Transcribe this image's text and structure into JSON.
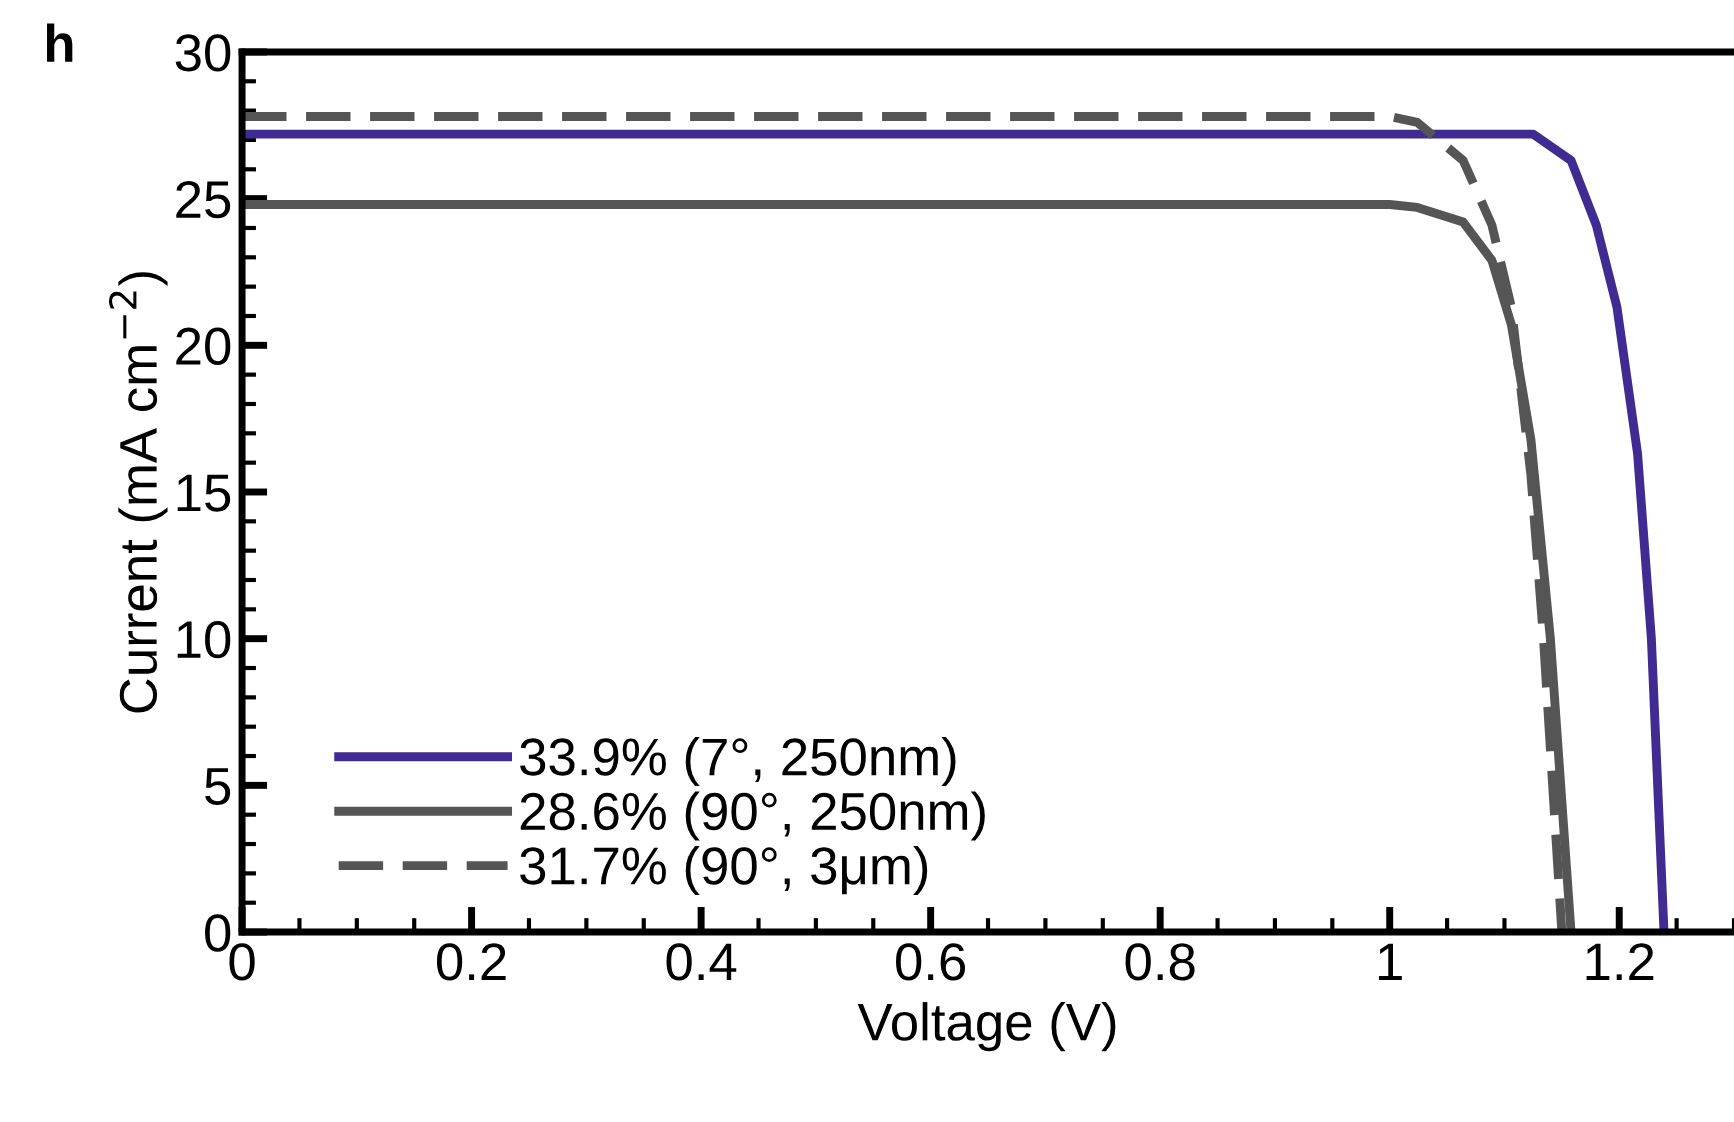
{
  "chart_data": {
    "type": "line",
    "xlabel": "Voltage (V)",
    "ylabel": "Current (mA cm$^{−2}$)",
    "annotations": [
      "h"
    ],
    "xlim": [
      0,
      1.3
    ],
    "xticks": [
      0,
      0.2,
      0.4,
      0.6,
      0.8,
      1,
      1.2
    ],
    "ylim": [
      0,
      30
    ],
    "yticks": [
      0,
      5,
      10,
      15,
      20,
      25,
      30
    ],
    "grid": false,
    "legend": "bottom left",
    "series": [
      {
        "name": "33.9% (7°, 250nm)",
        "color": "#3f2b91",
        "line_style": "solid",
        "x": [
          0,
          0.5,
          1.0,
          1.125,
          1.158,
          1.18,
          1.198,
          1.216,
          1.228,
          1.239
        ],
        "values": [
          27.2,
          27.2,
          27.2,
          27.2,
          26.3,
          24.1,
          21.3,
          16.3,
          10,
          0
        ]
      },
      {
        "name": "28.6% (90°, 250nm)",
        "color": "#555555",
        "line_style": "solid",
        "x": [
          0,
          0.5,
          1.0,
          1.024,
          1.064,
          1.089,
          1.106,
          1.123,
          1.14,
          1.158
        ],
        "values": [
          24.8,
          24.8,
          24.8,
          24.7,
          24.2,
          22.9,
          20.7,
          16.8,
          10,
          0
        ]
      },
      {
        "name": "31.7% (90°, 3μm)",
        "color": "#555555",
        "line_style": "dashed",
        "x": [
          0,
          0.5,
          1.0,
          1.024,
          1.064,
          1.089,
          1.106,
          1.123,
          1.134,
          1.15
        ],
        "values": [
          27.8,
          27.8,
          27.8,
          27.6,
          26.3,
          24.1,
          21.3,
          15.6,
          10,
          0
        ]
      }
    ]
  }
}
